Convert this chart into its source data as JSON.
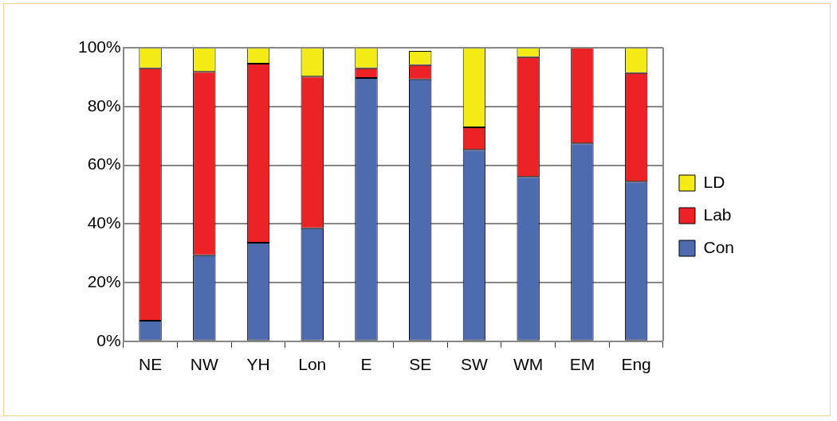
{
  "chart_data": {
    "type": "bar",
    "stacked": true,
    "categories": [
      "NE",
      "NW",
      "YH",
      "Lon",
      "E",
      "SE",
      "SW",
      "WM",
      "EM",
      "Eng"
    ],
    "series": [
      {
        "name": "Con",
        "color": "#4f6bb0",
        "values": [
          7.0,
          29.3,
          33.6,
          38.5,
          89.7,
          89.2,
          65.2,
          56.0,
          67.4,
          54.4
        ]
      },
      {
        "name": "Lab",
        "color": "#ec2227",
        "values": [
          86.0,
          62.5,
          61.0,
          51.7,
          3.3,
          4.9,
          7.7,
          40.8,
          32.6,
          37.0
        ]
      },
      {
        "name": "LD",
        "color": "#f5ec17",
        "values": [
          7.0,
          8.2,
          5.4,
          9.8,
          7.0,
          4.8,
          27.1,
          3.2,
          0,
          8.6
        ]
      }
    ],
    "ylim": [
      0,
      100
    ],
    "yticks": [
      {
        "value": 0,
        "label": "0%"
      },
      {
        "value": 20,
        "label": "20%"
      },
      {
        "value": 40,
        "label": "40%"
      },
      {
        "value": 60,
        "label": "60%"
      },
      {
        "value": 80,
        "label": "80%"
      },
      {
        "value": 100,
        "label": "100%"
      }
    ],
    "grid": "y",
    "legend": "right"
  }
}
